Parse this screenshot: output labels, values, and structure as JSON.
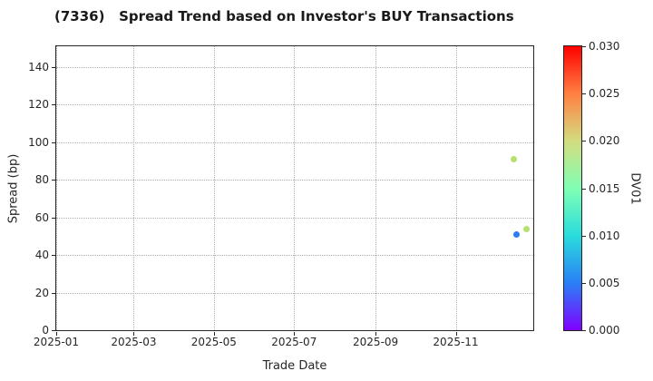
{
  "title": "(7336)   Spread Trend based on Investor's BUY Transactions",
  "chart_data": {
    "type": "scatter",
    "title": "(7336)   Spread Trend based on Investor's BUY Transactions",
    "xlabel": "Trade Date",
    "ylabel": "Spread (bp)",
    "grid": true,
    "grid_style": "dotted",
    "xlim_days": [
      0,
      363
    ],
    "xlim_dates": [
      "2025-01-01",
      "2025-12-30"
    ],
    "ylim": [
      0,
      151
    ],
    "x_ticks": [
      {
        "label": "2025-01",
        "day": 0
      },
      {
        "label": "2025-03",
        "day": 59
      },
      {
        "label": "2025-05",
        "day": 120
      },
      {
        "label": "2025-07",
        "day": 181
      },
      {
        "label": "2025-09",
        "day": 243
      },
      {
        "label": "2025-11",
        "day": 304
      }
    ],
    "y_ticks": [
      0,
      20,
      40,
      60,
      80,
      100,
      120,
      140
    ],
    "points": [
      {
        "date": "2025-12-15",
        "day": 348,
        "spread_bp": 91,
        "dv01": 0.019,
        "color": "#b7e06f"
      },
      {
        "date": "2025-12-17",
        "day": 350,
        "spread_bp": 51,
        "dv01": 0.005,
        "color": "#2e7cf2"
      },
      {
        "date": "2025-12-25",
        "day": 358,
        "spread_bp": 54,
        "dv01": 0.019,
        "color": "#b7e06f"
      }
    ],
    "colorbar": {
      "label": "DV01",
      "min": 0.0,
      "max": 0.03,
      "ticks": [
        "0.000",
        "0.005",
        "0.010",
        "0.015",
        "0.020",
        "0.025",
        "0.030"
      ],
      "colormap": "rainbow",
      "gradient_stops": [
        "#8000ff",
        "#2a80f6",
        "#2adcdc",
        "#80ffb4",
        "#d4dc80",
        "#ff8042",
        "#ff0000"
      ]
    },
    "legend": null
  },
  "colors": {
    "background": "#ffffff",
    "spine": "#262626",
    "grid": "#b0b0b0",
    "text": "#262626"
  }
}
